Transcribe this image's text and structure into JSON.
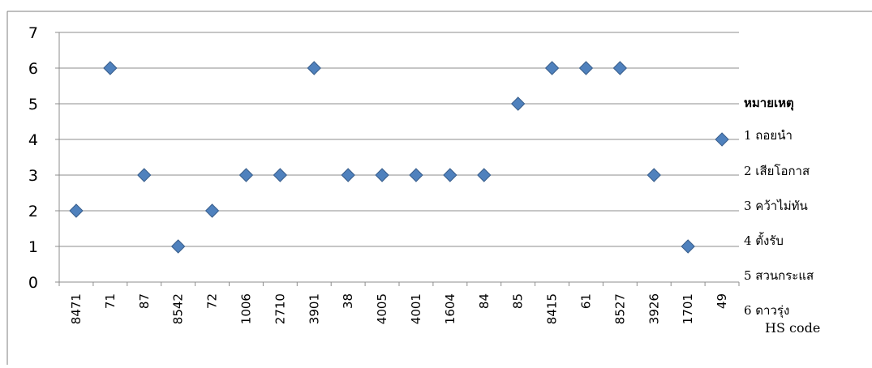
{
  "chart_data": {
    "type": "scatter",
    "x_label": "HS code",
    "categories": [
      "8471",
      "71",
      "87",
      "8542",
      "72",
      "1006",
      "2710",
      "3901",
      "38",
      "4005",
      "4001",
      "1604",
      "84",
      "85",
      "8415",
      "61",
      "8527",
      "3926",
      "1701",
      "49"
    ],
    "values": [
      2,
      6,
      3,
      1,
      2,
      3,
      3,
      6,
      3,
      3,
      3,
      3,
      3,
      5,
      6,
      6,
      6,
      3,
      1,
      4
    ],
    "ylim": [
      0,
      7
    ],
    "y_ticks": [
      "0",
      "1",
      "2",
      "3",
      "4",
      "5",
      "6",
      "7"
    ],
    "grid": true,
    "marker": "diamond",
    "colors": {
      "marker_fill": "#4f81bd",
      "marker_stroke": "#385d8a",
      "grid": "#8c8c8c"
    },
    "legend": {
      "title": "หมายเหตุ",
      "items": [
        "1 ถอยนำ",
        "2 เสียโอกาส",
        "3 คว้าไม่ทัน",
        "4 ตั้งรับ",
        "5 สวนกระแส",
        "6 ดาวรุ่ง"
      ]
    }
  }
}
